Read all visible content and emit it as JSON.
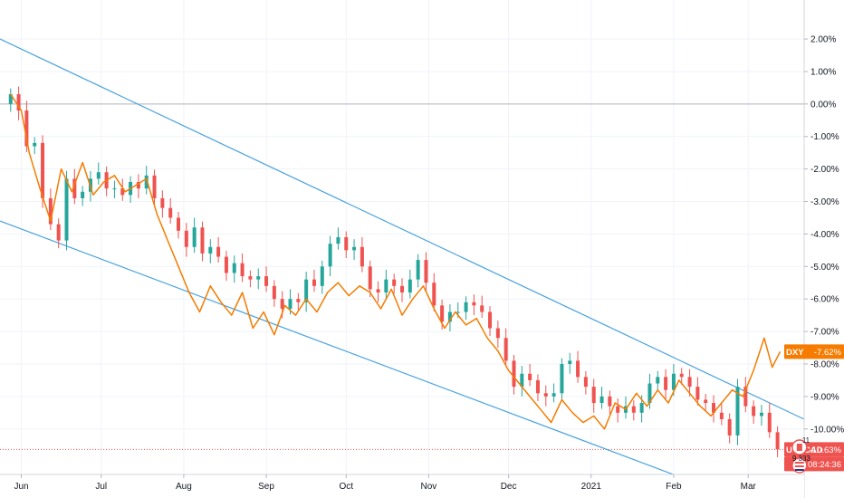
{
  "chart_data": {
    "type": "line",
    "chart_kind": "candlestick with comparison line",
    "grid": true,
    "ylabel_unit": "%",
    "ylim": [
      -12.5,
      2.1
    ],
    "y_ticks": [
      "2.00%",
      "1.00%",
      "0.00%",
      "-1.00%",
      "-2.00%",
      "-3.00%",
      "-4.00%",
      "-5.00%",
      "-6.00%",
      "-7.00%",
      "-8.00%",
      "-9.00%",
      "-10.00%"
    ],
    "y_tick_values": [
      2,
      1,
      0,
      -1,
      -2,
      -3,
      -4,
      -5,
      -6,
      -7,
      -8,
      -9,
      -10
    ],
    "x_ticks": [
      "Jun",
      "Jul",
      "Aug",
      "Sep",
      "Oct",
      "Nov",
      "Dec",
      "2021",
      "Feb",
      "Mar"
    ],
    "x_tick_dates": [
      "2020-06-01",
      "2020-07-01",
      "2020-08-01",
      "2020-09-01",
      "2020-10-01",
      "2020-11-01",
      "2020-12-01",
      "2021-01-01",
      "2021-02-01",
      "2021-03-01"
    ],
    "date_range": [
      "2020-05-28",
      "2021-03-12"
    ],
    "series": [
      {
        "name": "USDCAD",
        "kind": "candles",
        "last_label": "-10.63%",
        "countdown": "08:24:36",
        "up_color": "#26a69a",
        "down_color": "#ef5350",
        "points": [
          [
            "2020-05-28",
            0.3
          ],
          [
            "2020-05-31",
            -0.2
          ],
          [
            "2020-06-03",
            -1.3
          ],
          [
            "2020-06-06",
            -1.2
          ],
          [
            "2020-06-09",
            -2.9
          ],
          [
            "2020-06-12",
            -3.7
          ],
          [
            "2020-06-15",
            -4.2
          ],
          [
            "2020-06-18",
            -2.3
          ],
          [
            "2020-06-21",
            -2.9
          ],
          [
            "2020-06-24",
            -2.7
          ],
          [
            "2020-06-27",
            -2.3
          ],
          [
            "2020-06-30",
            -2.1
          ],
          [
            "2020-07-03",
            -2.6
          ],
          [
            "2020-07-06",
            -2.6
          ],
          [
            "2020-07-09",
            -2.8
          ],
          [
            "2020-07-12",
            -2.4
          ],
          [
            "2020-07-15",
            -2.6
          ],
          [
            "2020-07-18",
            -2.2
          ],
          [
            "2020-07-21",
            -2.9
          ],
          [
            "2020-07-24",
            -3.2
          ],
          [
            "2020-07-27",
            -3.5
          ],
          [
            "2020-07-30",
            -3.9
          ],
          [
            "2020-08-02",
            -4.4
          ],
          [
            "2020-08-05",
            -3.8
          ],
          [
            "2020-08-08",
            -4.6
          ],
          [
            "2020-08-11",
            -4.4
          ],
          [
            "2020-08-14",
            -4.7
          ],
          [
            "2020-08-17",
            -5.2
          ],
          [
            "2020-08-20",
            -4.9
          ],
          [
            "2020-08-23",
            -5.3
          ],
          [
            "2020-08-26",
            -5.4
          ],
          [
            "2020-08-29",
            -5.3
          ],
          [
            "2020-09-01",
            -5.6
          ],
          [
            "2020-09-04",
            -6.0
          ],
          [
            "2020-09-07",
            -6.3
          ],
          [
            "2020-09-10",
            -6.0
          ],
          [
            "2020-09-13",
            -6.1
          ],
          [
            "2020-09-16",
            -5.4
          ],
          [
            "2020-09-19",
            -5.6
          ],
          [
            "2020-09-22",
            -5.0
          ],
          [
            "2020-09-25",
            -4.3
          ],
          [
            "2020-09-28",
            -4.1
          ],
          [
            "2020-10-01",
            -4.5
          ],
          [
            "2020-10-04",
            -4.4
          ],
          [
            "2020-10-07",
            -5.0
          ],
          [
            "2020-10-10",
            -5.7
          ],
          [
            "2020-10-13",
            -5.8
          ],
          [
            "2020-10-16",
            -5.4
          ],
          [
            "2020-10-19",
            -5.6
          ],
          [
            "2020-10-22",
            -5.8
          ],
          [
            "2020-10-25",
            -5.4
          ],
          [
            "2020-10-28",
            -4.8
          ],
          [
            "2020-10-31",
            -5.5
          ],
          [
            "2020-11-03",
            -6.2
          ],
          [
            "2020-11-06",
            -6.7
          ],
          [
            "2020-11-09",
            -6.4
          ],
          [
            "2020-11-12",
            -6.4
          ],
          [
            "2020-11-15",
            -6.1
          ],
          [
            "2020-11-18",
            -6.2
          ],
          [
            "2020-11-21",
            -6.4
          ],
          [
            "2020-11-24",
            -6.9
          ],
          [
            "2020-11-27",
            -7.2
          ],
          [
            "2020-11-30",
            -7.9
          ],
          [
            "2020-12-03",
            -8.7
          ],
          [
            "2020-12-06",
            -8.3
          ],
          [
            "2020-12-09",
            -8.5
          ],
          [
            "2020-12-12",
            -8.9
          ],
          [
            "2020-12-15",
            -9.0
          ],
          [
            "2020-12-18",
            -8.9
          ],
          [
            "2020-12-21",
            -8.0
          ],
          [
            "2020-12-24",
            -7.9
          ],
          [
            "2020-12-27",
            -8.4
          ],
          [
            "2020-12-30",
            -8.7
          ],
          [
            "2021-01-02",
            -9.2
          ],
          [
            "2021-01-05",
            -9.0
          ],
          [
            "2021-01-08",
            -9.3
          ],
          [
            "2021-01-11",
            -9.5
          ],
          [
            "2021-01-14",
            -9.3
          ],
          [
            "2021-01-17",
            -9.5
          ],
          [
            "2021-01-20",
            -9.2
          ],
          [
            "2021-01-23",
            -8.6
          ],
          [
            "2021-01-26",
            -8.4
          ],
          [
            "2021-01-29",
            -8.8
          ],
          [
            "2021-02-01",
            -8.3
          ],
          [
            "2021-02-04",
            -8.4
          ],
          [
            "2021-02-07",
            -8.7
          ],
          [
            "2021-02-10",
            -9.1
          ],
          [
            "2021-02-13",
            -9.2
          ],
          [
            "2021-02-16",
            -9.5
          ],
          [
            "2021-02-19",
            -9.7
          ],
          [
            "2021-02-22",
            -10.2
          ],
          [
            "2021-02-25",
            -8.7
          ],
          [
            "2021-02-28",
            -9.3
          ],
          [
            "2021-03-03",
            -9.6
          ],
          [
            "2021-03-06",
            -9.5
          ],
          [
            "2021-03-09",
            -10.1
          ],
          [
            "2021-03-12",
            -10.63
          ]
        ]
      },
      {
        "name": "DXY",
        "kind": "line",
        "last_label": "-7.62%",
        "color": "#f57c00",
        "points": [
          [
            "2020-05-28",
            0.3
          ],
          [
            "2020-06-01",
            -0.2
          ],
          [
            "2020-06-04",
            -1.5
          ],
          [
            "2020-06-08",
            -2.6
          ],
          [
            "2020-06-12",
            -3.6
          ],
          [
            "2020-06-16",
            -2.0
          ],
          [
            "2020-06-20",
            -2.7
          ],
          [
            "2020-06-24",
            -1.8
          ],
          [
            "2020-06-28",
            -2.8
          ],
          [
            "2020-07-02",
            -2.4
          ],
          [
            "2020-07-06",
            -2.2
          ],
          [
            "2020-07-10",
            -2.7
          ],
          [
            "2020-07-14",
            -2.5
          ],
          [
            "2020-07-18",
            -2.3
          ],
          [
            "2020-07-22",
            -3.4
          ],
          [
            "2020-07-26",
            -4.2
          ],
          [
            "2020-07-30",
            -5.0
          ],
          [
            "2020-08-03",
            -5.8
          ],
          [
            "2020-08-07",
            -6.4
          ],
          [
            "2020-08-11",
            -5.6
          ],
          [
            "2020-08-15",
            -6.1
          ],
          [
            "2020-08-19",
            -6.5
          ],
          [
            "2020-08-23",
            -5.8
          ],
          [
            "2020-08-27",
            -6.9
          ],
          [
            "2020-08-31",
            -6.4
          ],
          [
            "2020-09-04",
            -7.1
          ],
          [
            "2020-09-08",
            -6.2
          ],
          [
            "2020-09-12",
            -6.5
          ],
          [
            "2020-09-16",
            -6.0
          ],
          [
            "2020-09-20",
            -6.4
          ],
          [
            "2020-09-24",
            -5.8
          ],
          [
            "2020-09-28",
            -5.5
          ],
          [
            "2020-10-02",
            -5.9
          ],
          [
            "2020-10-06",
            -5.6
          ],
          [
            "2020-10-10",
            -5.8
          ],
          [
            "2020-10-14",
            -6.3
          ],
          [
            "2020-10-18",
            -5.7
          ],
          [
            "2020-10-22",
            -6.5
          ],
          [
            "2020-10-26",
            -6.0
          ],
          [
            "2020-10-30",
            -5.6
          ],
          [
            "2020-11-03",
            -6.3
          ],
          [
            "2020-11-07",
            -6.9
          ],
          [
            "2020-11-11",
            -6.4
          ],
          [
            "2020-11-15",
            -6.8
          ],
          [
            "2020-11-19",
            -6.6
          ],
          [
            "2020-11-23",
            -7.2
          ],
          [
            "2020-11-27",
            -7.6
          ],
          [
            "2020-12-01",
            -8.2
          ],
          [
            "2020-12-05",
            -8.6
          ],
          [
            "2020-12-09",
            -9.0
          ],
          [
            "2020-12-13",
            -9.4
          ],
          [
            "2020-12-17",
            -9.8
          ],
          [
            "2020-12-21",
            -9.1
          ],
          [
            "2020-12-25",
            -9.5
          ],
          [
            "2020-12-29",
            -9.8
          ],
          [
            "2021-01-02",
            -9.6
          ],
          [
            "2021-01-06",
            -10.0
          ],
          [
            "2021-01-10",
            -9.2
          ],
          [
            "2021-01-14",
            -9.4
          ],
          [
            "2021-01-18",
            -8.9
          ],
          [
            "2021-01-22",
            -9.3
          ],
          [
            "2021-01-26",
            -8.8
          ],
          [
            "2021-01-30",
            -9.2
          ],
          [
            "2021-02-03",
            -8.5
          ],
          [
            "2021-02-07",
            -8.9
          ],
          [
            "2021-02-11",
            -9.3
          ],
          [
            "2021-02-15",
            -9.6
          ],
          [
            "2021-02-19",
            -9.2
          ],
          [
            "2021-02-23",
            -8.8
          ],
          [
            "2021-02-27",
            -9.0
          ],
          [
            "2021-03-03",
            -8.2
          ],
          [
            "2021-03-07",
            -7.2
          ],
          [
            "2021-03-10",
            -8.1
          ],
          [
            "2021-03-13",
            -7.62
          ]
        ]
      }
    ],
    "trendlines": [
      {
        "color": "#4aa3df",
        "from": [
          "2020-05-24",
          2.0
        ],
        "to": [
          "2021-03-22",
          -9.7
        ]
      },
      {
        "color": "#4aa3df",
        "from": [
          "2020-05-24",
          -3.6
        ],
        "to": [
          "2021-03-02",
          -12.3
        ]
      }
    ],
    "reference_lines": [
      {
        "y": 0,
        "color": "#b2b5be"
      },
      {
        "y": -10.63,
        "color": "#ef5350",
        "style": "dotted"
      }
    ],
    "events": [
      {
        "date": "2021-03-08",
        "glyph": "11"
      },
      {
        "date": "2021-03-08",
        "glyph": "9 333"
      }
    ]
  }
}
